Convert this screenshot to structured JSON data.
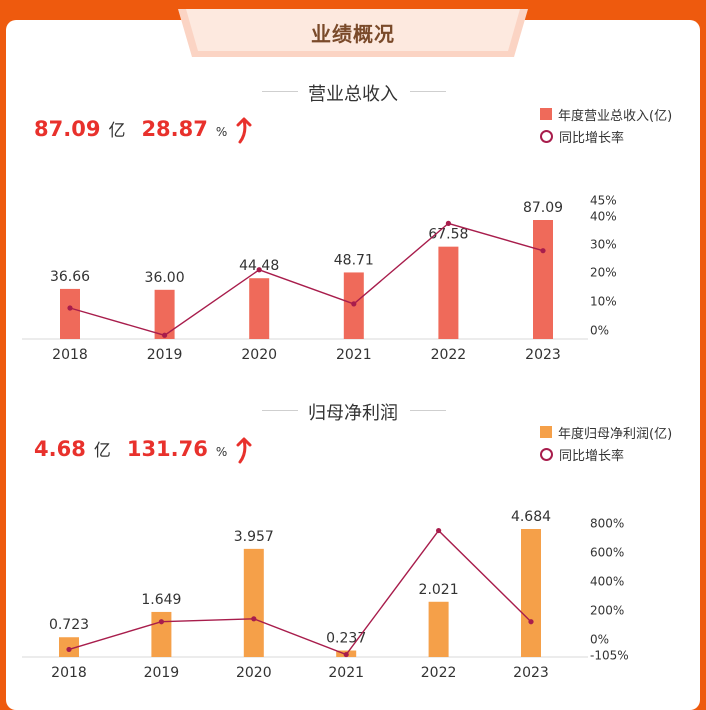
{
  "page": {
    "banner_title": "业绩概况",
    "colors": {
      "background": "#ee5a0e",
      "kpi_red": "#e8312c",
      "rate_line": "#a81d4c"
    }
  },
  "revenue": {
    "section_title": "营业总收入",
    "kpi_value": "87.09",
    "kpi_unit": "亿",
    "kpi_growth": "28.87",
    "kpi_growth_unit": "%",
    "icon": "up-arrow-icon",
    "legend_bar": "年度营业总收入(亿)",
    "legend_line": "同比增长率"
  },
  "profit": {
    "section_title": "归母净利润",
    "kpi_value": "4.68",
    "kpi_unit": "亿",
    "kpi_growth": "131.76",
    "kpi_growth_unit": "%",
    "icon": "up-arrow-icon",
    "legend_bar": "年度归母净利润(亿)",
    "legend_line": "同比增长率"
  },
  "chart_data": [
    {
      "type": "bar",
      "categories": [
        "2018",
        "2019",
        "2020",
        "2021",
        "2022",
        "2023"
      ],
      "series": [
        {
          "name": "年度营业总收入(亿)",
          "type": "bar",
          "values": [
            36.66,
            36.0,
            44.48,
            48.71,
            67.58,
            87.09
          ],
          "labels": [
            "36.66",
            "36.00",
            "44.48",
            "48.71",
            "67.58",
            "87.09"
          ],
          "color": "#ef6a5a"
        },
        {
          "name": "同比增长率",
          "type": "line",
          "axis": "right",
          "values": [
            8,
            -2,
            22,
            9.5,
            39,
            29
          ],
          "color": "#a81d4c"
        }
      ],
      "right_axis_ticks": [
        "45%",
        "40%",
        "30%",
        "20%",
        "10%",
        "0%"
      ],
      "ylim_right": [
        -3,
        45
      ]
    },
    {
      "type": "bar",
      "categories": [
        "2018",
        "2019",
        "2020",
        "2021",
        "2022",
        "2023"
      ],
      "series": [
        {
          "name": "年度归母净利润(亿)",
          "type": "bar",
          "values": [
            0.723,
            1.649,
            3.957,
            0.237,
            2.021,
            4.684
          ],
          "labels": [
            "0.723",
            "1.649",
            "3.957",
            "0.237",
            "2.021",
            "4.684"
          ],
          "color": "#f5a049"
        },
        {
          "name": "同比增长率",
          "type": "line",
          "axis": "right",
          "values": [
            -60,
            130,
            150,
            -95,
            755,
            130
          ],
          "color": "#a81d4c"
        }
      ],
      "right_axis_ticks": [
        "800%",
        "600%",
        "400%",
        "200%",
        "0%",
        "-105%"
      ],
      "ylim_right": [
        -105,
        800
      ]
    }
  ]
}
